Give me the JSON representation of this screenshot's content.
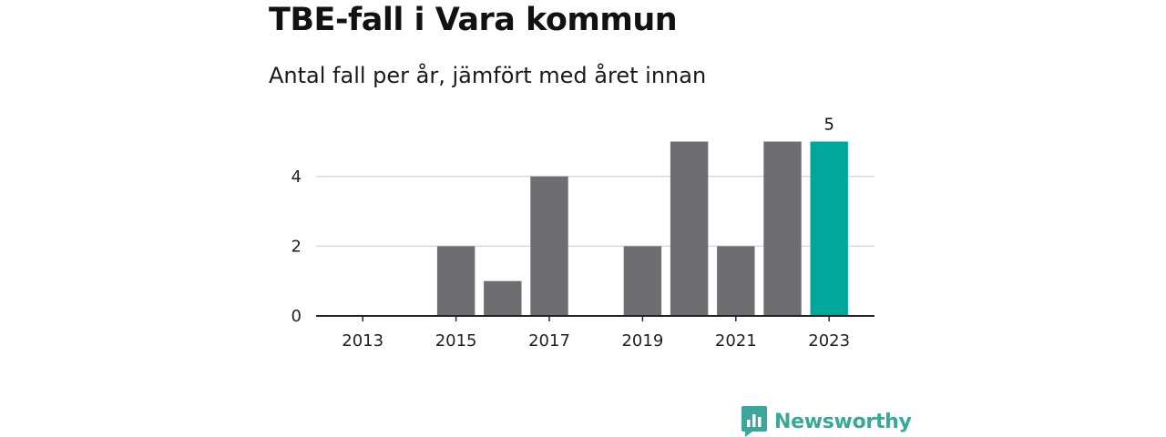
{
  "header": {
    "title": "TBE-fall i Vara kommun",
    "subtitle": "Antal fall per år, jämfört med året innan"
  },
  "logo": {
    "text": "Newsworthy",
    "icon": "newsworthy-bar-chart-icon"
  },
  "colors": {
    "bar": "#6d6d72",
    "highlight": "#00a79a",
    "grid": "#d9d9d9",
    "axis": "#222222",
    "brand": "#3aa79a"
  },
  "chart_data": {
    "type": "bar",
    "categories": [
      "2013",
      "2014",
      "2015",
      "2016",
      "2017",
      "2018",
      "2019",
      "2020",
      "2021",
      "2022",
      "2023"
    ],
    "values": [
      0,
      0,
      2,
      1,
      4,
      0,
      2,
      5,
      2,
      5,
      5
    ],
    "x_tick_labels": [
      "2013",
      "2015",
      "2017",
      "2019",
      "2021",
      "2023"
    ],
    "y_ticks": [
      0,
      2,
      4
    ],
    "ylim": [
      0,
      5
    ],
    "highlight_category": "2023",
    "data_labels": [
      {
        "category": "2023",
        "text": "5"
      }
    ],
    "grid": true,
    "xlabel": "",
    "ylabel": ""
  }
}
